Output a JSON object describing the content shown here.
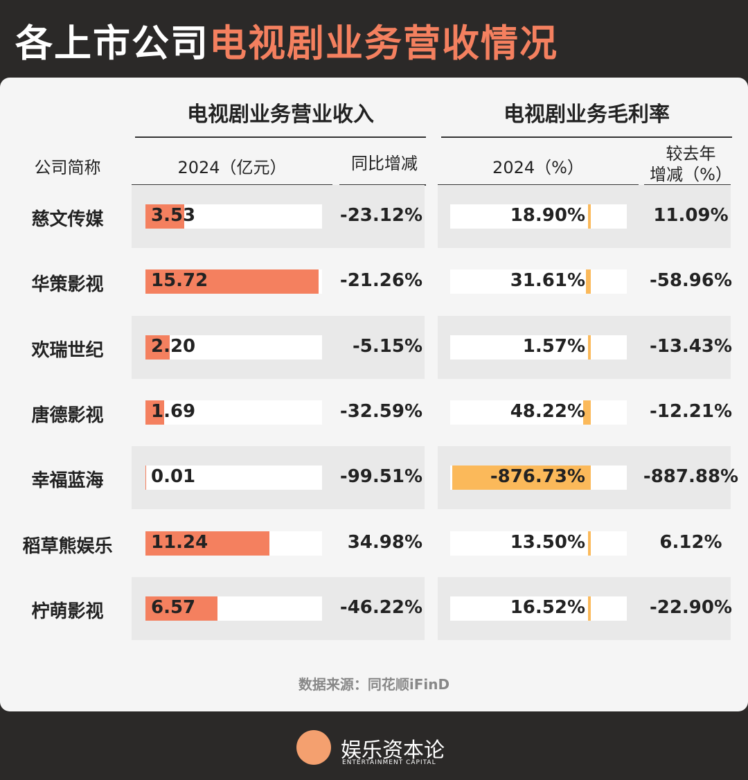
{
  "header": {
    "title_white": "各上市公司",
    "title_orange": "电视剧业务营收情况"
  },
  "table": {
    "group_headers": [
      "电视剧业务营业收入",
      "电视剧业务毛利率"
    ],
    "columns": [
      "公司简称",
      "2024（亿元）",
      "同比增减",
      "2024（%）",
      [
        "较去年",
        "增减（%）"
      ]
    ],
    "rows": [
      {
        "company": "慈文传媒",
        "revenue": 3.53,
        "revenue_label": "3.53",
        "yoy": "-23.12%",
        "margin": 18.9,
        "margin_label": "18.90%",
        "margin_change": "11.09%"
      },
      {
        "company": "华策影视",
        "revenue": 15.72,
        "revenue_label": "15.72",
        "yoy": "-21.26%",
        "margin": 31.61,
        "margin_label": "31.61%",
        "margin_change": "-58.96%"
      },
      {
        "company": "欢瑞世纪",
        "revenue": 2.2,
        "revenue_label": "2.20",
        "yoy": "-5.15%",
        "margin": 1.57,
        "margin_label": "1.57%",
        "margin_change": "-13.43%"
      },
      {
        "company": "唐德影视",
        "revenue": 1.69,
        "revenue_label": "1.69",
        "yoy": "-32.59%",
        "margin": 48.22,
        "margin_label": "48.22%",
        "margin_change": "-12.21%"
      },
      {
        "company": "幸福蓝海",
        "revenue": 0.01,
        "revenue_label": "0.01",
        "yoy": "-99.51%",
        "margin": -876.73,
        "margin_label": "-876.73%",
        "margin_change": "-887.88%"
      },
      {
        "company": "稻草熊娱乐",
        "revenue": 11.24,
        "revenue_label": "11.24",
        "yoy": "34.98%",
        "margin": 13.5,
        "margin_label": "13.50%",
        "margin_change": "6.12%"
      },
      {
        "company": "柠萌影视",
        "revenue": 6.57,
        "revenue_label": "6.57",
        "yoy": "-46.22%",
        "margin": 16.52,
        "margin_label": "16.52%",
        "margin_change": "-22.90%"
      }
    ]
  },
  "footer": {
    "source": "数据来源：同花顺iFinD",
    "logo": "娱乐资本论",
    "logo_en": "ENTERTAINMENT CAPITAL"
  }
}
